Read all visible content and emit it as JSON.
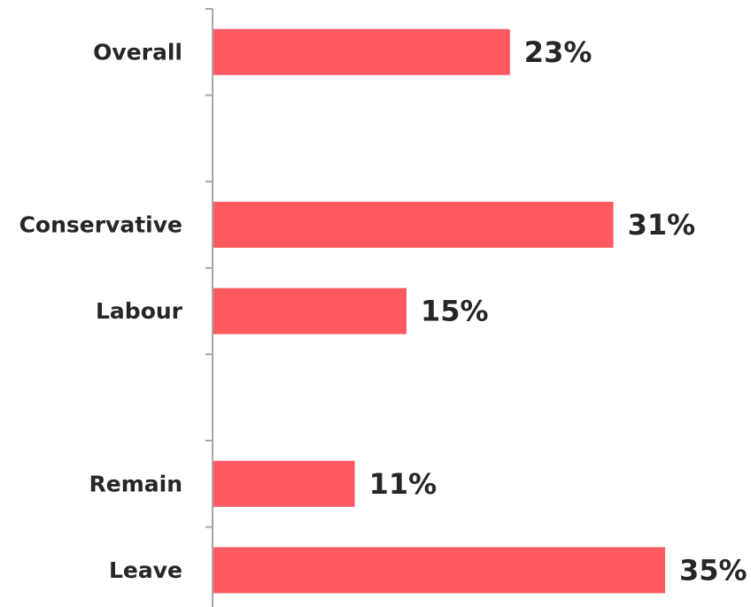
{
  "colors": {
    "bar": "#ff5a5f",
    "axis": "#a6a6a6",
    "text": "#262626"
  },
  "chart_data": {
    "type": "bar",
    "orientation": "horizontal",
    "categories": [
      "Overall",
      "",
      "Conservative",
      "Labour",
      "",
      "Remain",
      "Leave"
    ],
    "values": [
      23,
      null,
      31,
      15,
      null,
      11,
      35
    ],
    "value_labels": [
      "23%",
      "",
      "31%",
      "15%",
      "",
      "11%",
      "35%"
    ],
    "unit": "%",
    "title": "",
    "xlabel": "",
    "ylabel": "",
    "xlim": [
      0,
      35
    ],
    "grid": false,
    "legend": "none"
  }
}
